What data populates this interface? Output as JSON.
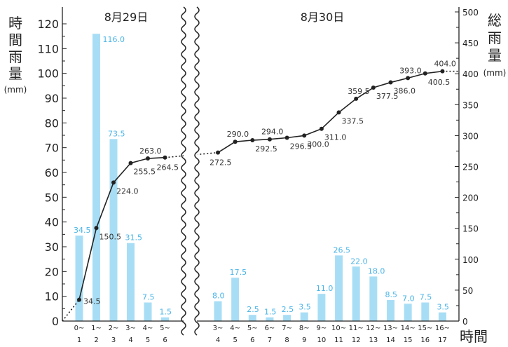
{
  "chart_data": {
    "type": "bar",
    "left_axis": {
      "title_chars": [
        "時",
        "間",
        "雨",
        "量"
      ],
      "unit": "(mm)",
      "ylim": [
        0,
        120
      ],
      "ticks": [
        "0",
        "10",
        "20",
        "30",
        "40",
        "50",
        "60",
        "70",
        "80",
        "90",
        "100",
        "110",
        "120"
      ]
    },
    "right_axis": {
      "title_chars": [
        "総",
        "雨",
        "量"
      ],
      "unit": "(mm)",
      "ylim": [
        0,
        500
      ],
      "ticks": [
        "0",
        "50",
        "100",
        "150",
        "200",
        "250",
        "300",
        "350",
        "400",
        "450",
        "500"
      ]
    },
    "x_axis_title": "時間",
    "groups": [
      {
        "date": "8月29日",
        "categories": [
          [
            "0~",
            "1"
          ],
          [
            "1~",
            "2"
          ],
          [
            "2~",
            "3"
          ],
          [
            "3~",
            "4"
          ],
          [
            "4~",
            "5"
          ],
          [
            "5~",
            "6"
          ]
        ],
        "hourly": [
          34.5,
          116.0,
          73.5,
          31.5,
          7.5,
          1.5
        ],
        "hourly_labels": [
          "34.5",
          "116.0",
          "73.5",
          "31.5",
          "7.5",
          "1.5"
        ],
        "cumulative": [
          34.5,
          150.5,
          224.0,
          255.5,
          263.0,
          264.5
        ],
        "cumulative_labels": [
          "34.5",
          "150.5",
          "224.0",
          "255.5",
          "263.0",
          "264.5"
        ]
      },
      {
        "date": "8月30日",
        "categories": [
          [
            "3~",
            "4"
          ],
          [
            "4~",
            "5"
          ],
          [
            "5~",
            "6"
          ],
          [
            "6~",
            "7"
          ],
          [
            "7~",
            "8"
          ],
          [
            "8~",
            "9"
          ],
          [
            "9~",
            "10"
          ],
          [
            "10~",
            "11"
          ],
          [
            "11~",
            "12"
          ],
          [
            "12~",
            "13"
          ],
          [
            "13~",
            "14"
          ],
          [
            "14~",
            "15"
          ],
          [
            "15~",
            "16"
          ],
          [
            "16~",
            "17"
          ]
        ],
        "hourly": [
          8.0,
          17.5,
          2.5,
          1.5,
          2.5,
          3.5,
          11.0,
          26.5,
          22.0,
          18.0,
          8.5,
          7.0,
          7.5,
          3.5
        ],
        "hourly_labels": [
          "8.0",
          "17.5",
          "2.5",
          "1.5",
          "2.5",
          "3.5",
          "11.0",
          "26.5",
          "22.0",
          "18.0",
          "8.5",
          "7.0",
          "7.5",
          "3.5"
        ],
        "cumulative": [
          272.5,
          290.0,
          292.5,
          294.0,
          296.5,
          300.0,
          311.0,
          337.5,
          359.5,
          377.5,
          386.0,
          393.0,
          400.5,
          404.0
        ],
        "cumulative_labels": [
          "272.5",
          "290.0",
          "292.5",
          "294.0",
          "296.5",
          "300.0",
          "311.0",
          "337.5",
          "359.5",
          "377.5",
          "386.0",
          "393.0",
          "400.5",
          "404.0"
        ]
      }
    ],
    "series": [
      {
        "name": "時間雨量",
        "type": "bar",
        "color": "#a8def5",
        "label_color": "#4ab5e8"
      },
      {
        "name": "総雨量",
        "type": "line",
        "color": "#222222"
      }
    ]
  }
}
